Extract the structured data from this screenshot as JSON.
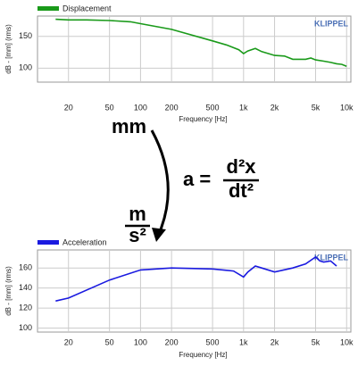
{
  "chart_data": [
    {
      "type": "line",
      "x_label": "Frequency [Hz]",
      "y_label": "dB - [mm] (rms)",
      "brand": "KLIPPEL",
      "x": [
        15,
        20,
        30,
        50,
        80,
        100,
        200,
        500,
        700,
        900,
        1000,
        1100,
        1300,
        1500,
        2000,
        2500,
        3000,
        4000,
        4500,
        5000,
        6000,
        7000,
        8000,
        9000,
        10000
      ],
      "series": [
        {
          "name": "Displacement",
          "color": "#1a9a1a",
          "values": [
            177,
            176,
            176,
            175,
            173,
            170,
            161,
            143,
            136,
            129,
            123,
            127,
            131,
            126,
            120,
            119,
            114,
            114,
            116,
            113,
            111,
            109,
            107,
            106,
            103
          ]
        }
      ],
      "xlim": [
        10,
        11000
      ],
      "ylim": [
        78,
        182
      ],
      "log_x": true,
      "grid": true,
      "xticks": [
        20,
        50,
        100,
        200,
        500,
        {
          "value": 1000,
          "label": "1k"
        },
        {
          "value": 2000,
          "label": "2k"
        },
        {
          "value": 5000,
          "label": "5k"
        },
        {
          "value": 10000,
          "label": "10k"
        }
      ],
      "yticks": [
        100,
        150
      ]
    },
    {
      "type": "line",
      "x_label": "Frequency [Hz]",
      "y_label": "dB - [mm] (rms)",
      "brand": "KLIPPEL",
      "x": [
        15,
        20,
        50,
        100,
        200,
        500,
        800,
        1000,
        1100,
        1300,
        1500,
        2000,
        3000,
        4000,
        5000,
        5500,
        6000,
        7000,
        8000
      ],
      "series": [
        {
          "name": "Acceleration",
          "color": "#1a1ae0",
          "values": [
            127,
            130,
            148,
            158,
            160,
            159,
            157,
            151,
            156,
            162,
            160,
            156,
            160,
            164,
            171,
            167,
            166,
            167,
            162
          ]
        }
      ],
      "xlim": [
        10,
        11000
      ],
      "ylim": [
        96,
        178
      ],
      "log_x": true,
      "grid": true,
      "xticks": [
        20,
        50,
        100,
        200,
        500,
        {
          "value": 1000,
          "label": "1k"
        },
        {
          "value": 2000,
          "label": "2k"
        },
        {
          "value": 5000,
          "label": "5k"
        },
        {
          "value": 10000,
          "label": "10k"
        }
      ],
      "yticks": [
        100,
        120,
        140,
        160
      ]
    }
  ],
  "annotations": {
    "from_unit": "mm",
    "to_unit_numerator": "m",
    "to_unit_denominator": "s²",
    "formula_lhs": "a =",
    "formula_numerator": "d²x",
    "formula_denominator": "dt²"
  }
}
